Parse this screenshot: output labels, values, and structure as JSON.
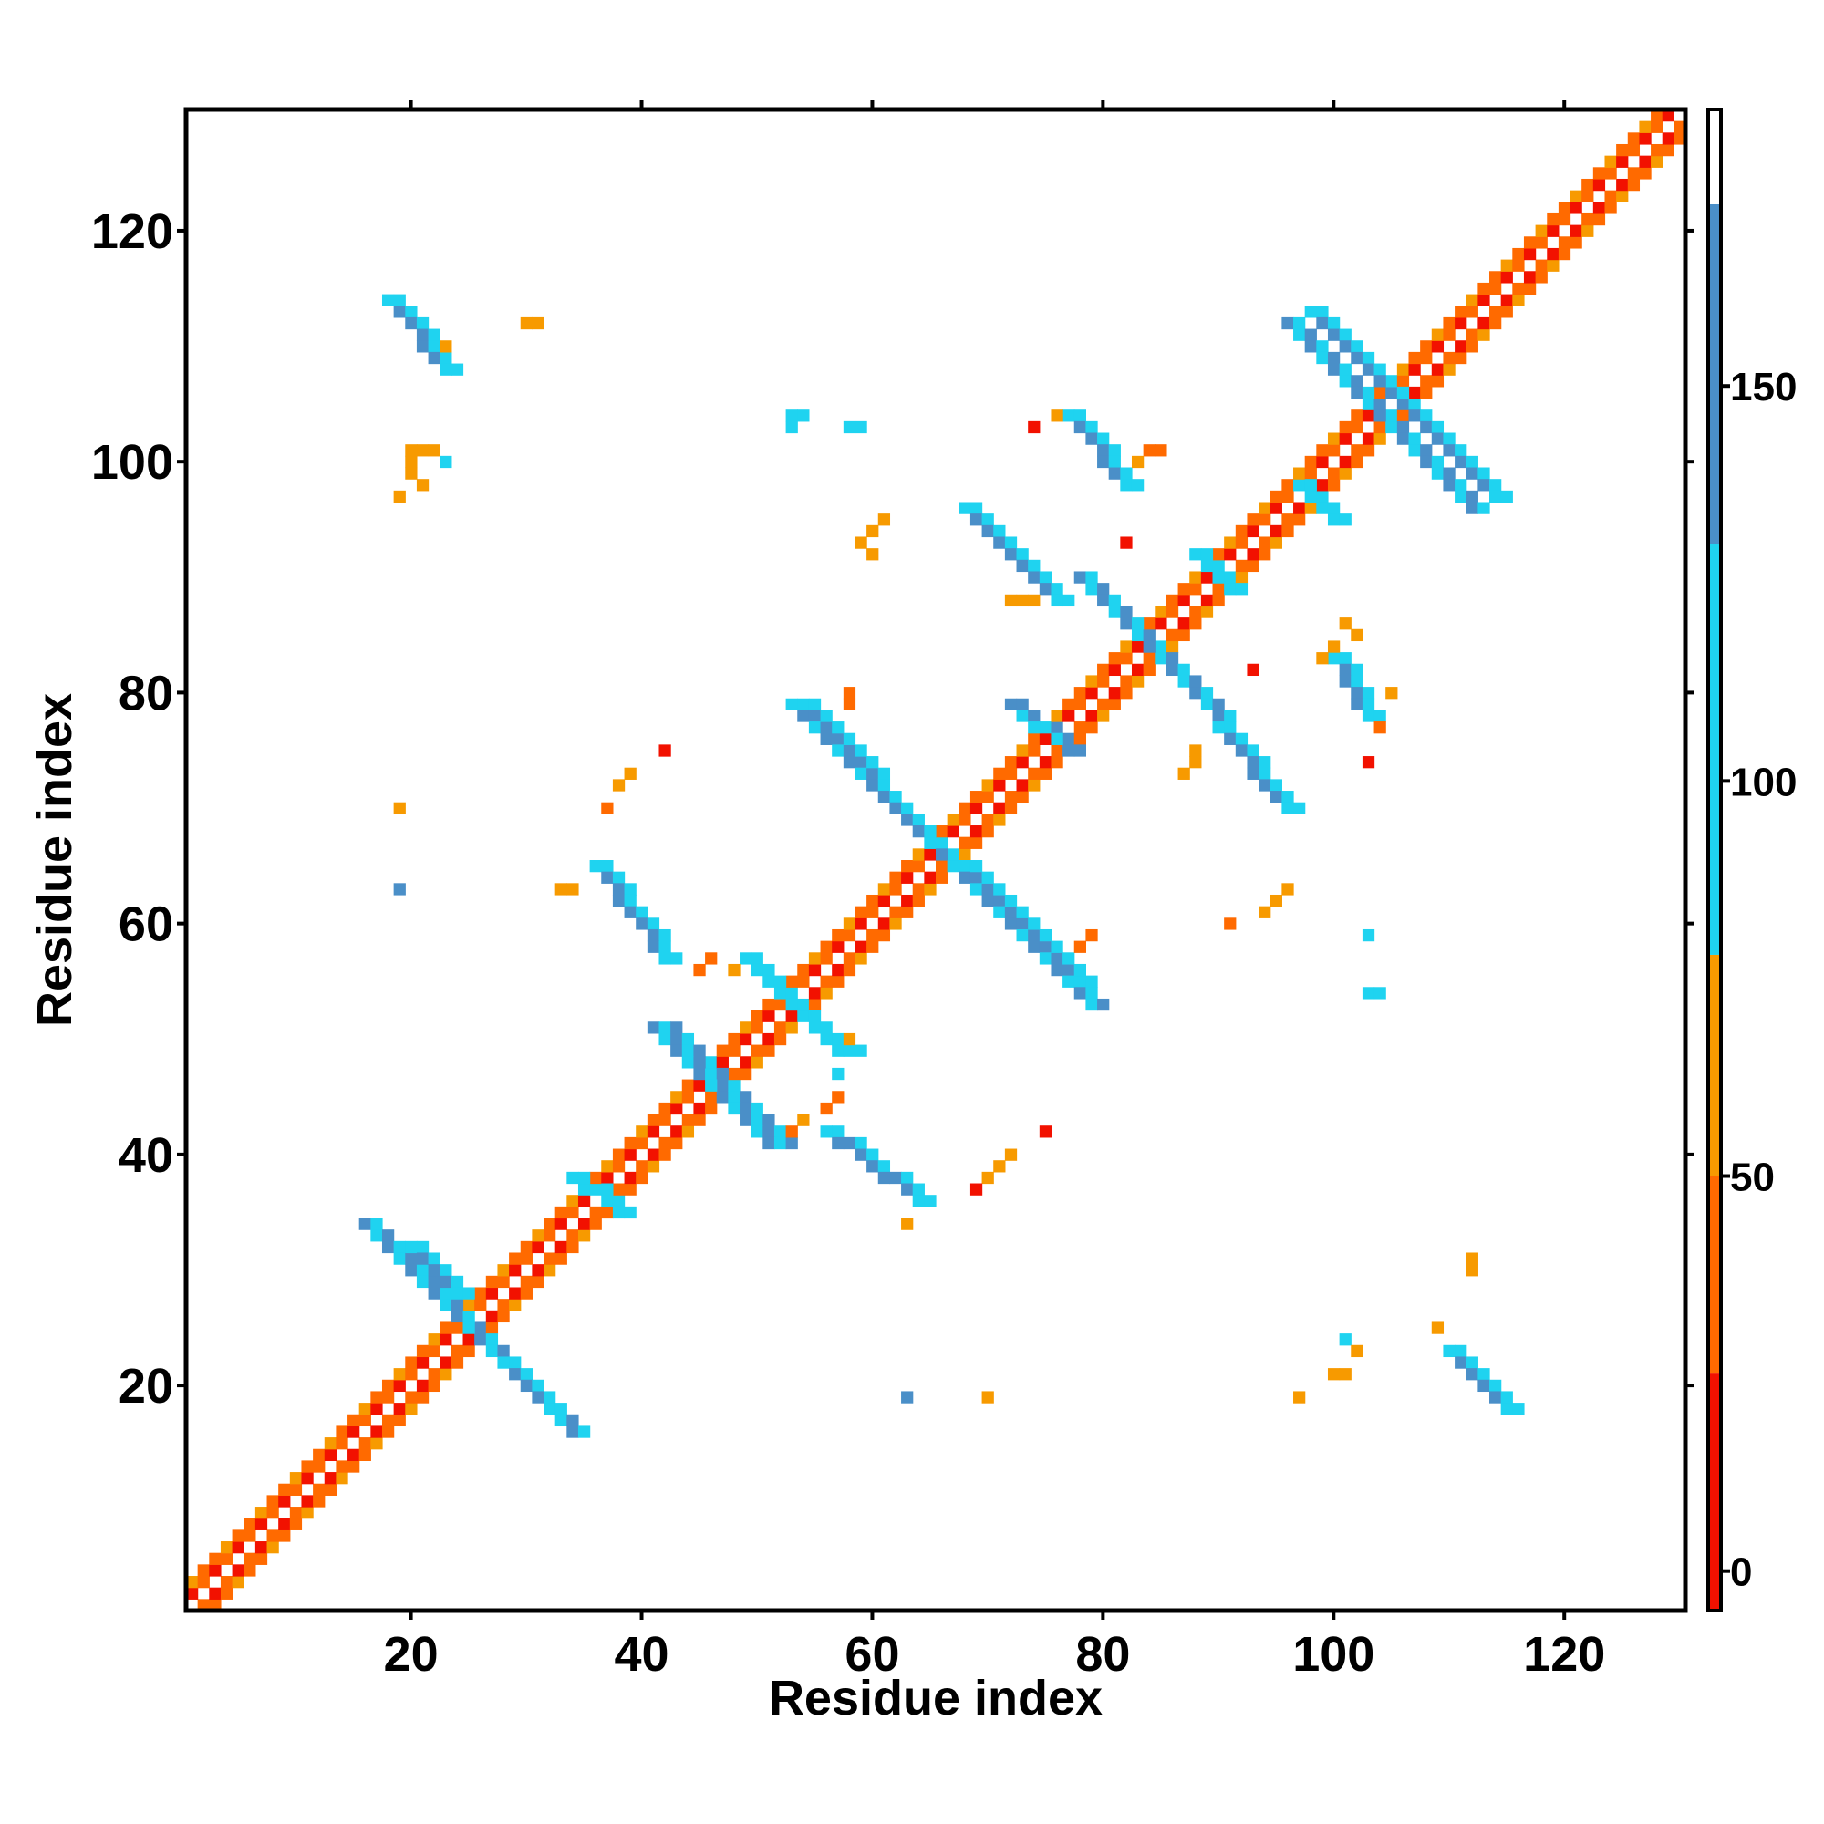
{
  "chart_data": {
    "type": "heatmap",
    "title": "",
    "xlabel": "Residue index",
    "ylabel": "Residue index",
    "xlim": [
      1,
      130
    ],
    "ylim": [
      1,
      130
    ],
    "x_ticks": [
      20,
      40,
      60,
      80,
      100,
      120
    ],
    "y_ticks": [
      20,
      40,
      60,
      80,
      100,
      120
    ],
    "grid": false,
    "legend": "right colorbar",
    "colorbar": {
      "ticks": [
        0,
        50,
        100,
        150
      ],
      "range": [
        -5,
        185
      ],
      "bands": [
        {
          "from": -5,
          "to": 25,
          "color": "#f21100"
        },
        {
          "from": 25,
          "to": 50,
          "color": "#ff6a00"
        },
        {
          "from": 50,
          "to": 78,
          "color": "#f79a00"
        },
        {
          "from": 78,
          "to": 130,
          "color": "#1fd3f0"
        },
        {
          "from": 130,
          "to": 173,
          "color": "#4a8fc8"
        },
        {
          "from": 173,
          "to": 185,
          "color": "#ffffff"
        }
      ]
    },
    "band_colors": {
      "red": "#f21100",
      "darkorange": "#ff6a00",
      "orange": "#f79a00",
      "cyan": "#1fd3f0",
      "steel": "#4a8fc8"
    },
    "regions": [
      {
        "kind": "diag",
        "x0": 1,
        "x1": 130,
        "colors": [
          "orange",
          "red",
          "darkorange"
        ]
      },
      {
        "kind": "anti",
        "cx": 25,
        "cy": 25,
        "len": 9,
        "w": 2,
        "colors": [
          "cyan",
          "steel"
        ]
      },
      {
        "kind": "anti",
        "cx": 46,
        "cy": 46,
        "len": 5,
        "w": 3,
        "colors": [
          "cyan",
          "steel"
        ]
      },
      {
        "kind": "anti",
        "cx": 53,
        "cy": 53,
        "len": 4,
        "w": 2,
        "colors": [
          "cyan"
        ]
      },
      {
        "kind": "anti",
        "cx": 66,
        "cy": 66,
        "len": 13,
        "w": 2,
        "colors": [
          "steel",
          "cyan"
        ]
      },
      {
        "kind": "anti",
        "cx": 84,
        "cy": 84,
        "len": 6,
        "w": 2,
        "colors": [
          "steel",
          "cyan"
        ]
      },
      {
        "kind": "anti",
        "cx": 104,
        "cy": 104,
        "len": 8,
        "w": 2,
        "colors": [
          "steel",
          "cyan"
        ]
      },
      {
        "kind": "par",
        "x0": 18,
        "y0": 114,
        "x1": 23,
        "y1": 108,
        "w": 2,
        "colors": [
          "steel",
          "cyan"
        ]
      },
      {
        "kind": "par",
        "x0": 98,
        "y0": 113,
        "x1": 114,
        "y1": 97,
        "w": 2,
        "colors": [
          "steel",
          "cyan"
        ]
      },
      {
        "kind": "par",
        "x0": 20,
        "y0": 32,
        "x1": 24,
        "y1": 28,
        "w": 2,
        "colors": [
          "steel",
          "cyan"
        ]
      },
      {
        "kind": "par",
        "x0": 28,
        "y0": 22,
        "x1": 32,
        "y1": 18,
        "w": 2,
        "colors": [
          "steel",
          "cyan"
        ]
      },
      {
        "kind": "par",
        "x0": 110,
        "y0": 23,
        "x1": 115,
        "y1": 18,
        "w": 2,
        "colors": [
          "steel",
          "cyan"
        ]
      },
      {
        "kind": "par",
        "x0": 36,
        "y0": 65,
        "x1": 42,
        "y1": 57,
        "w": 2,
        "colors": [
          "steel",
          "cyan"
        ]
      },
      {
        "kind": "par",
        "x0": 56,
        "y0": 42,
        "x1": 64,
        "y1": 36,
        "w": 2,
        "colors": [
          "steel",
          "cyan"
        ]
      },
      {
        "kind": "par",
        "x0": 54,
        "y0": 79,
        "x1": 65,
        "y1": 67,
        "w": 2,
        "colors": [
          "steel",
          "cyan"
        ]
      },
      {
        "kind": "par",
        "x0": 68,
        "y0": 65,
        "x1": 78,
        "y1": 55,
        "w": 2,
        "colors": [
          "steel",
          "cyan"
        ]
      },
      {
        "kind": "par",
        "x0": 68,
        "y0": 96,
        "x1": 76,
        "y1": 88,
        "w": 2,
        "colors": [
          "steel",
          "cyan"
        ]
      },
      {
        "kind": "par",
        "x0": 77,
        "y0": 104,
        "x1": 82,
        "y1": 98,
        "w": 2,
        "colors": [
          "steel",
          "cyan"
        ]
      },
      {
        "kind": "par",
        "x0": 90,
        "y0": 77,
        "x1": 96,
        "y1": 70,
        "w": 2,
        "colors": [
          "steel",
          "cyan"
        ]
      },
      {
        "kind": "par",
        "x0": 100,
        "y0": 83,
        "x1": 103,
        "y1": 78,
        "w": 2,
        "colors": [
          "steel",
          "cyan"
        ]
      },
      {
        "kind": "par",
        "x0": 72,
        "y0": 79,
        "x1": 77,
        "y1": 75,
        "w": 2,
        "colors": [
          "cyan",
          "steel"
        ]
      },
      {
        "kind": "par",
        "x0": 88,
        "y0": 92,
        "x1": 91,
        "y1": 89,
        "w": 2,
        "colors": [
          "cyan"
        ]
      },
      {
        "kind": "par",
        "x0": 97,
        "y0": 98,
        "x1": 100,
        "y1": 95,
        "w": 2,
        "colors": [
          "cyan"
        ]
      },
      {
        "kind": "par",
        "x0": 34,
        "y0": 38,
        "x1": 38,
        "y1": 35,
        "w": 2,
        "colors": [
          "cyan"
        ]
      }
    ],
    "dots": [
      [
        30,
        112,
        "orange"
      ],
      [
        31,
        112,
        "orange"
      ],
      [
        23,
        110,
        "orange"
      ],
      [
        53,
        104,
        "cyan"
      ],
      [
        53,
        103,
        "cyan"
      ],
      [
        54,
        104,
        "cyan"
      ],
      [
        58,
        103,
        "cyan"
      ],
      [
        59,
        103,
        "cyan"
      ],
      [
        20,
        101,
        "orange"
      ],
      [
        21,
        101,
        "orange"
      ],
      [
        22,
        101,
        "orange"
      ],
      [
        20,
        100,
        "orange"
      ],
      [
        23,
        100,
        "cyan"
      ],
      [
        20,
        99,
        "orange"
      ],
      [
        21,
        98,
        "orange"
      ],
      [
        19,
        97,
        "orange"
      ],
      [
        74,
        103,
        "red"
      ],
      [
        76,
        104,
        "orange"
      ],
      [
        84,
        101,
        "darkorange"
      ],
      [
        85,
        101,
        "darkorange"
      ],
      [
        83,
        100,
        "orange"
      ],
      [
        61,
        95,
        "orange"
      ],
      [
        60,
        94,
        "orange"
      ],
      [
        59,
        93,
        "orange"
      ],
      [
        60,
        92,
        "orange"
      ],
      [
        82,
        93,
        "red"
      ],
      [
        72,
        88,
        "orange"
      ],
      [
        73,
        88,
        "orange"
      ],
      [
        74,
        88,
        "orange"
      ],
      [
        101,
        86,
        "orange"
      ],
      [
        102,
        85,
        "orange"
      ],
      [
        100,
        84,
        "orange"
      ],
      [
        99,
        83,
        "orange"
      ],
      [
        105,
        80,
        "orange"
      ],
      [
        104,
        77,
        "darkorange"
      ],
      [
        93,
        82,
        "red"
      ],
      [
        58,
        80,
        "darkorange"
      ],
      [
        58,
        79,
        "darkorange"
      ],
      [
        42,
        75,
        "red"
      ],
      [
        39,
        73,
        "orange"
      ],
      [
        38,
        72,
        "orange"
      ],
      [
        37,
        70,
        "darkorange"
      ],
      [
        19,
        70,
        "orange"
      ],
      [
        103,
        74,
        "red"
      ],
      [
        88,
        75,
        "orange"
      ],
      [
        88,
        74,
        "orange"
      ],
      [
        87,
        73,
        "orange"
      ],
      [
        19,
        63,
        "steel"
      ],
      [
        33,
        63,
        "orange"
      ],
      [
        34,
        63,
        "orange"
      ],
      [
        96,
        63,
        "orange"
      ],
      [
        95,
        62,
        "orange"
      ],
      [
        94,
        61,
        "orange"
      ],
      [
        91,
        60,
        "darkorange"
      ],
      [
        79,
        59,
        "darkorange"
      ],
      [
        78,
        58,
        "darkorange"
      ],
      [
        103,
        59,
        "cyan"
      ],
      [
        103,
        54,
        "cyan"
      ],
      [
        104,
        54,
        "cyan"
      ],
      [
        45,
        56,
        "darkorange"
      ],
      [
        46,
        57,
        "darkorange"
      ],
      [
        48,
        56,
        "orange"
      ],
      [
        58,
        50,
        "orange"
      ],
      [
        59,
        49,
        "cyan"
      ],
      [
        57,
        47,
        "cyan"
      ],
      [
        56,
        44,
        "darkorange"
      ],
      [
        57,
        45,
        "darkorange"
      ],
      [
        54,
        43,
        "orange"
      ],
      [
        53,
        42,
        "darkorange"
      ],
      [
        75,
        42,
        "red"
      ],
      [
        72,
        40,
        "orange"
      ],
      [
        71,
        39,
        "orange"
      ],
      [
        70,
        38,
        "orange"
      ],
      [
        69,
        37,
        "red"
      ],
      [
        63,
        34,
        "orange"
      ],
      [
        112,
        31,
        "orange"
      ],
      [
        112,
        30,
        "orange"
      ],
      [
        101,
        24,
        "cyan"
      ],
      [
        102,
        23,
        "orange"
      ],
      [
        100,
        21,
        "orange"
      ],
      [
        101,
        21,
        "orange"
      ],
      [
        109,
        25,
        "orange"
      ],
      [
        97,
        19,
        "orange"
      ],
      [
        63,
        19,
        "steel"
      ],
      [
        70,
        19,
        "orange"
      ]
    ]
  }
}
